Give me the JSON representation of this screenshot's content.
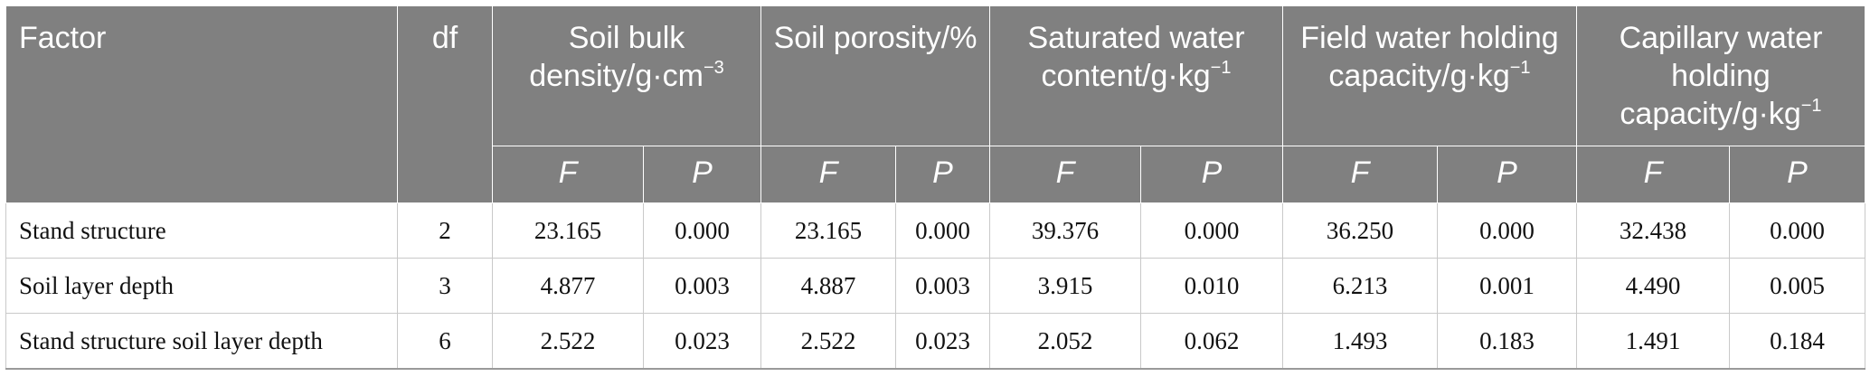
{
  "header": {
    "factor": "Factor",
    "df": "df",
    "groups": [
      {
        "text": "Soil bulk density/g·cm",
        "sup": "−3"
      },
      {
        "text": "Soil porosity/%",
        "sup": ""
      },
      {
        "text": "Saturated water content/g·kg",
        "sup": "−1"
      },
      {
        "text": "Field water holding capacity/g·kg",
        "sup": "−1"
      },
      {
        "text": "Capillary water holding capacity/g·kg",
        "sup": "−1"
      }
    ],
    "sub": [
      "F",
      "P",
      "F",
      "P",
      "F",
      "P",
      "F",
      "P",
      "F",
      "P"
    ]
  },
  "rows": [
    {
      "label": "Stand structure",
      "df": "2",
      "values": [
        "23.165",
        "0.000",
        "23.165",
        "0.000",
        "39.376",
        "0.000",
        "36.250",
        "0.000",
        "32.438",
        "0.000"
      ]
    },
    {
      "label": "Soil layer depth",
      "df": "3",
      "values": [
        "4.877",
        "0.003",
        "4.887",
        "0.003",
        "3.915",
        "0.010",
        "6.213",
        "0.001",
        "4.490",
        "0.005"
      ]
    },
    {
      "label": "Stand structure soil layer depth",
      "df": "6",
      "values": [
        "2.522",
        "0.023",
        "2.522",
        "0.023",
        "2.052",
        "0.062",
        "1.493",
        "0.183",
        "1.491",
        "0.184"
      ]
    }
  ]
}
